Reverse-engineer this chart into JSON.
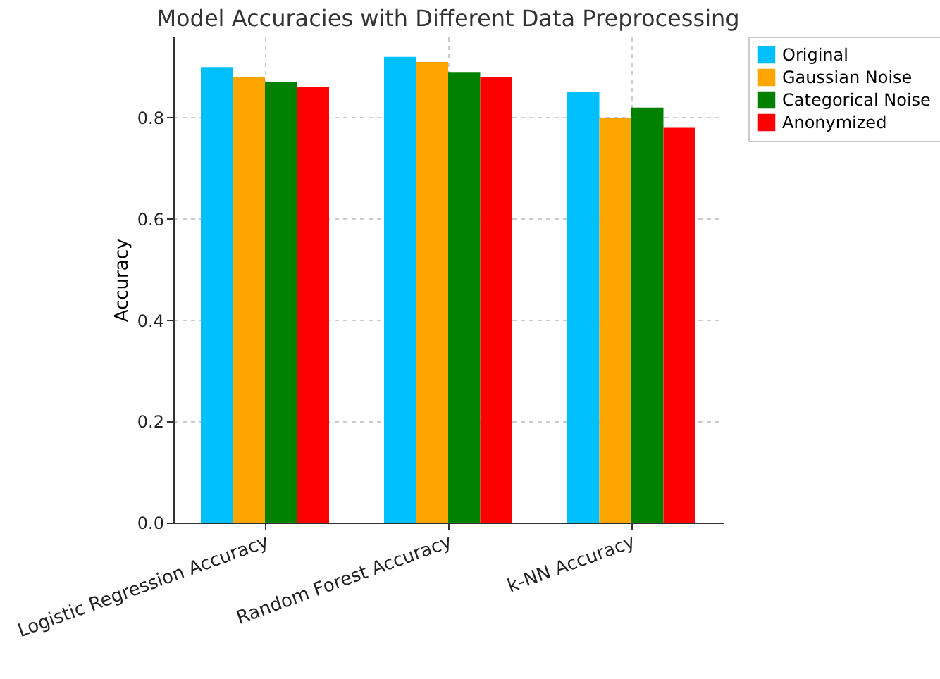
{
  "chart_data": {
    "type": "bar",
    "title": "Model Accuracies with Different Data Preprocessing",
    "ylabel": "Accuracy",
    "categories": [
      "Logistic Regression Accuracy",
      "Random Forest Accuracy",
      "k-NN Accuracy"
    ],
    "series": [
      {
        "name": "Original",
        "color": "#00bfff",
        "values": [
          0.9,
          0.92,
          0.85
        ]
      },
      {
        "name": "Gaussian Noise",
        "color": "#ffa500",
        "values": [
          0.88,
          0.91,
          0.8
        ]
      },
      {
        "name": "Categorical Noise",
        "color": "#008000",
        "values": [
          0.87,
          0.89,
          0.82
        ]
      },
      {
        "name": "Anonymized",
        "color": "#ff0000",
        "values": [
          0.86,
          0.88,
          0.78
        ]
      }
    ],
    "ylim": [
      0,
      0.96
    ],
    "yticks": [
      {
        "value": 0,
        "label": "0.0"
      },
      0.2,
      0.4,
      0.6,
      0.8
    ],
    "grid": true,
    "legend": "top right"
  }
}
